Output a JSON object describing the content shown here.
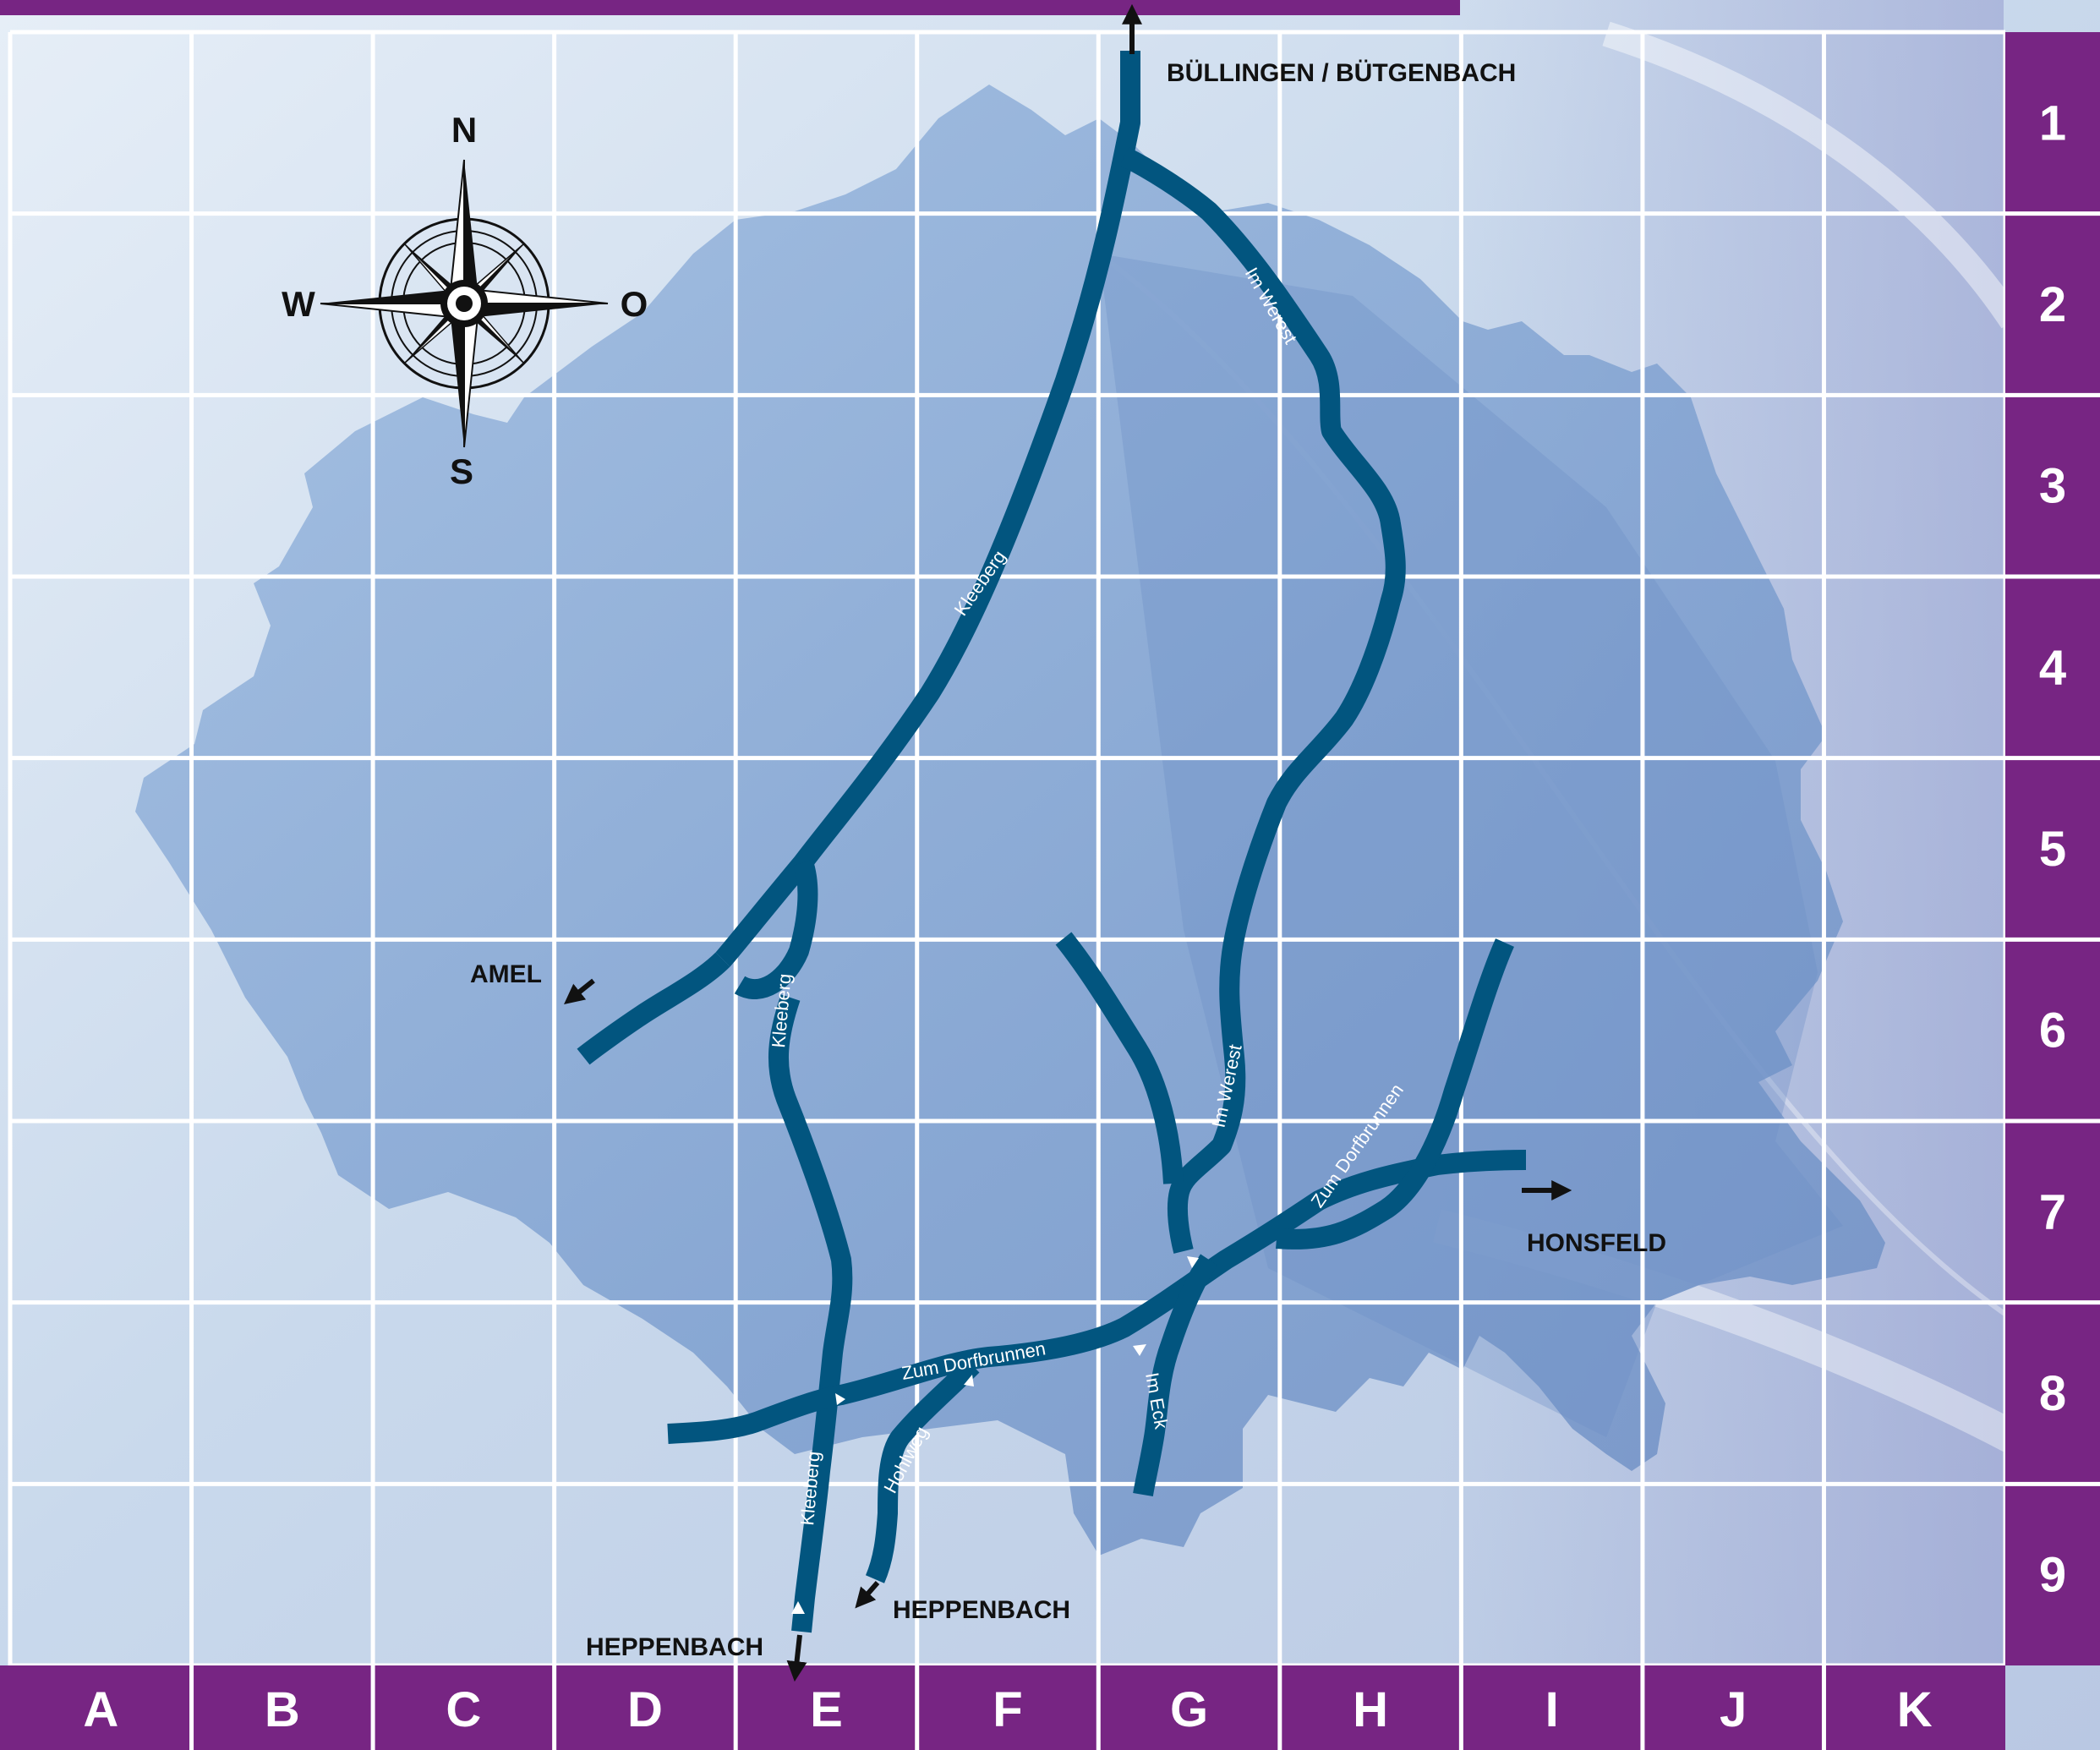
{
  "columns": [
    "A",
    "B",
    "C",
    "D",
    "E",
    "F",
    "G",
    "H",
    "I",
    "J",
    "K"
  ],
  "rows": [
    "1",
    "2",
    "3",
    "4",
    "5",
    "6",
    "7",
    "8",
    "9"
  ],
  "compass": {
    "north": "N",
    "south": "S",
    "west": "W",
    "east": "O"
  },
  "destinations": {
    "north": "BÜLLINGEN / BÜTGENBACH",
    "west": "AMEL",
    "east": "HONSFELD",
    "south_1": "HEPPENBACH",
    "south_2": "HEPPENBACH"
  },
  "streets": {
    "kleeberg_upper": "Kleeberg",
    "kleeberg_middle": "Kleeberg",
    "kleeberg_lower": "Kleeberg",
    "im_werest_upper": "Im Werest",
    "im_werest_lower": "Im Werest",
    "zum_dorfbrunnen_east": "Zum Dorfbrunnen",
    "zum_dorfbrunnen_west": "Zum Dorfbrunnen",
    "hohlweg": "Hohlweg",
    "im_eck": "Im Eck"
  },
  "colors": {
    "accent_purple": "#772583",
    "road": "#02557f",
    "grid_line": "#ffffff",
    "background_light": "#dbe6f2",
    "area_blue": "#84a7d3"
  }
}
